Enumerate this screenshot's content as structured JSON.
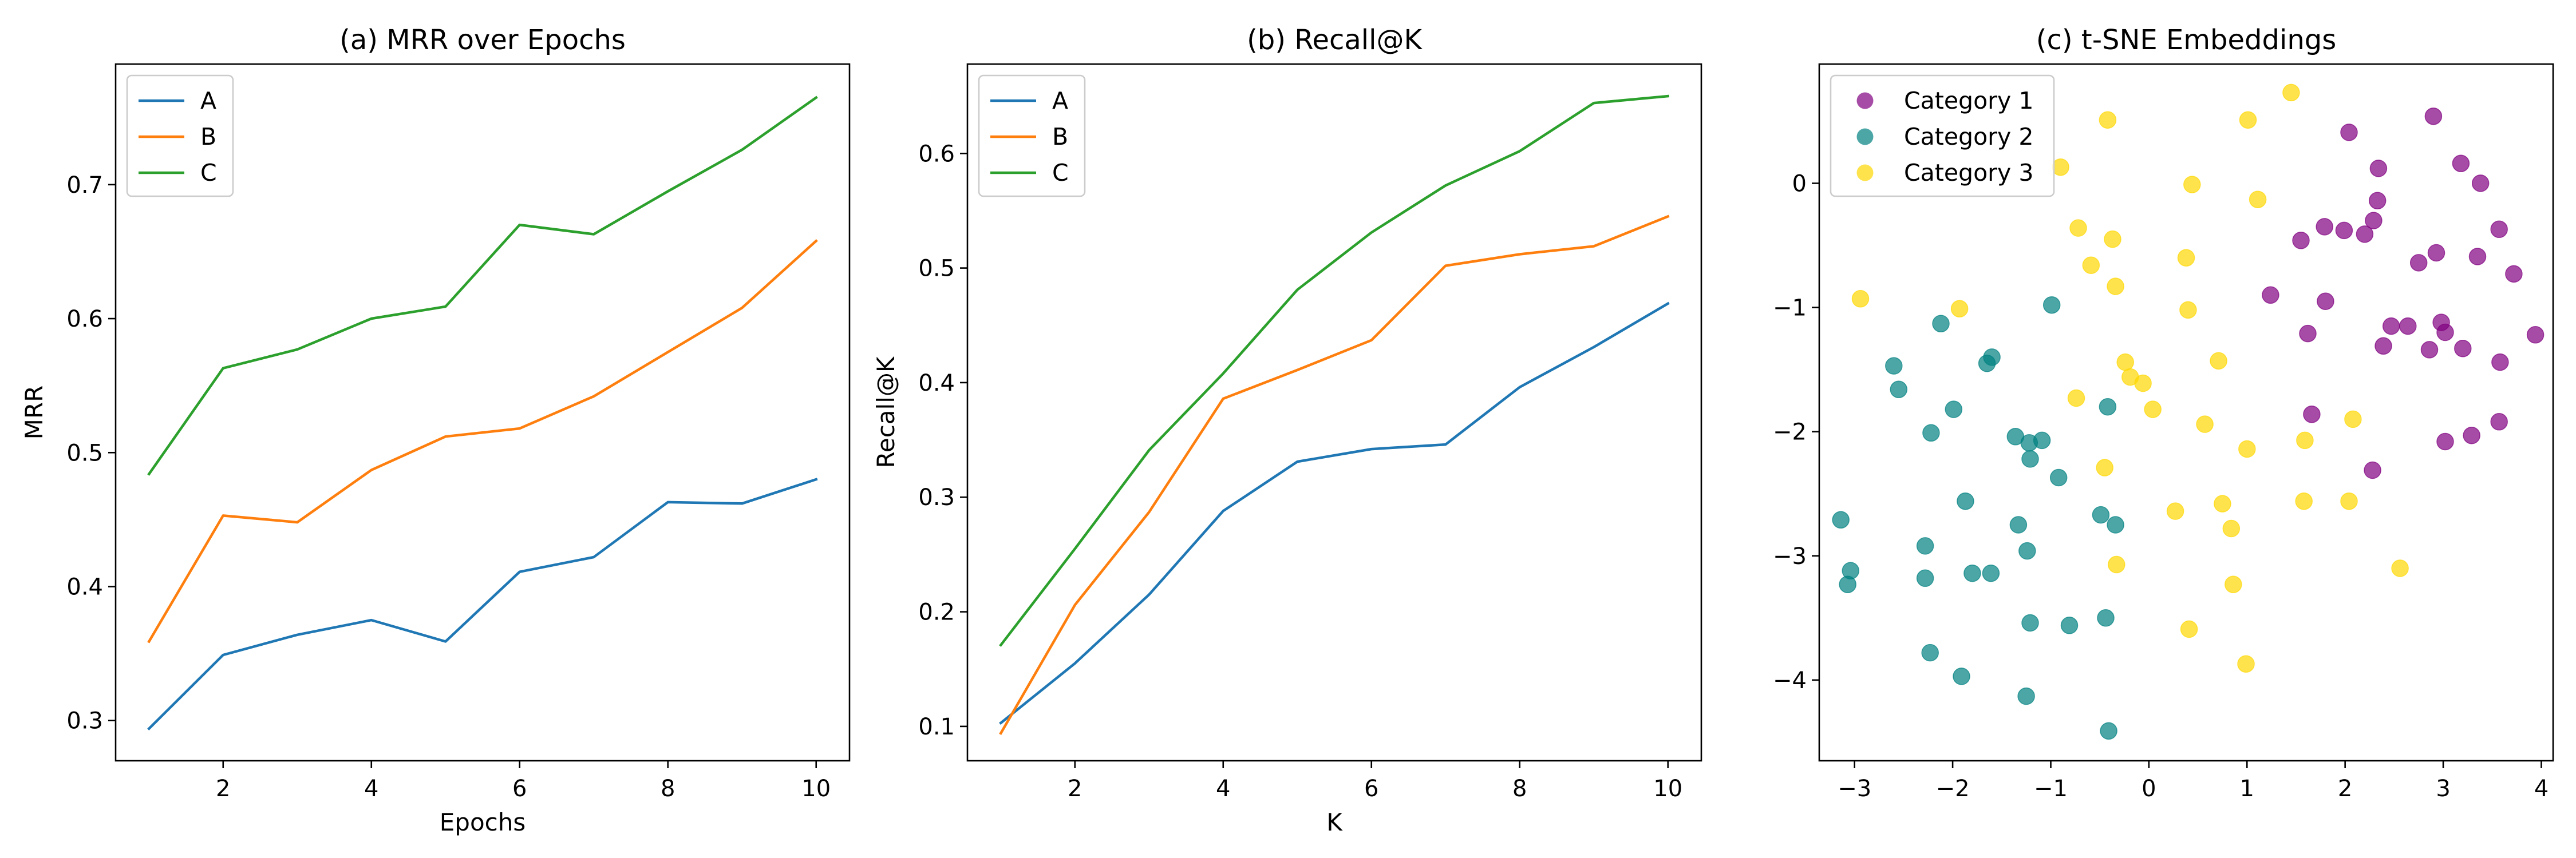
{
  "chart_data": [
    {
      "type": "line",
      "title": "(a) MRR over Epochs",
      "xlabel": "Epochs",
      "ylabel": "MRR",
      "xlim": [
        0.55,
        10.45
      ],
      "ylim": [
        0.27,
        0.79
      ],
      "xticks": [
        2,
        4,
        6,
        8,
        10
      ],
      "yticks": [
        0.3,
        0.4,
        0.5,
        0.6,
        0.7
      ],
      "legend": "top-left",
      "grid": false,
      "x": [
        1,
        2,
        3,
        4,
        5,
        6,
        7,
        8,
        9,
        10
      ],
      "series": [
        {
          "name": "A",
          "color": "#1f77b4",
          "values": [
            0.294,
            0.349,
            0.364,
            0.375,
            0.359,
            0.411,
            0.422,
            0.463,
            0.462,
            0.48
          ]
        },
        {
          "name": "B",
          "color": "#ff7f0e",
          "values": [
            0.359,
            0.453,
            0.448,
            0.487,
            0.512,
            0.518,
            0.542,
            0.575,
            0.608,
            0.658
          ]
        },
        {
          "name": "C",
          "color": "#2ca02c",
          "values": [
            0.484,
            0.563,
            0.577,
            0.6,
            0.609,
            0.67,
            0.663,
            0.695,
            0.726,
            0.765
          ]
        }
      ]
    },
    {
      "type": "line",
      "title": "(b) Recall@K",
      "xlabel": "K",
      "ylabel": "Recall@K",
      "xlim": [
        0.55,
        10.45
      ],
      "ylim": [
        0.07,
        0.678
      ],
      "xticks": [
        2,
        4,
        6,
        8,
        10
      ],
      "yticks": [
        0.1,
        0.2,
        0.3,
        0.4,
        0.5,
        0.6
      ],
      "legend": "top-left",
      "grid": false,
      "x": [
        1,
        2,
        3,
        4,
        5,
        6,
        7,
        8,
        9,
        10
      ],
      "series": [
        {
          "name": "A",
          "color": "#1f77b4",
          "values": [
            0.103,
            0.155,
            0.215,
            0.288,
            0.331,
            0.342,
            0.346,
            0.396,
            0.431,
            0.469
          ]
        },
        {
          "name": "B",
          "color": "#ff7f0e",
          "values": [
            0.094,
            0.206,
            0.287,
            0.386,
            0.411,
            0.437,
            0.502,
            0.512,
            0.519,
            0.545
          ]
        },
        {
          "name": "C",
          "color": "#2ca02c",
          "values": [
            0.171,
            0.255,
            0.341,
            0.408,
            0.481,
            0.531,
            0.572,
            0.602,
            0.644,
            0.65
          ]
        }
      ]
    },
    {
      "type": "scatter",
      "title": "(c) t-SNE Embeddings",
      "xlabel": "",
      "ylabel": "",
      "xlim": [
        -3.36,
        4.12
      ],
      "ylim": [
        -4.65,
        0.96
      ],
      "xticks": [
        -3,
        -2,
        -1,
        0,
        1,
        2,
        3,
        4
      ],
      "yticks": [
        -4,
        -3,
        -2,
        -1,
        0
      ],
      "legend": "top-left",
      "grid": false,
      "series": [
        {
          "name": "Category 1",
          "color": "#800080",
          "points": [
            [
              2.9,
              0.54
            ],
            [
              2.04,
              0.41
            ],
            [
              3.18,
              0.16
            ],
            [
              2.34,
              0.12
            ],
            [
              3.38,
              0.0
            ],
            [
              2.33,
              -0.14
            ],
            [
              2.29,
              -0.3
            ],
            [
              1.79,
              -0.35
            ],
            [
              1.99,
              -0.38
            ],
            [
              3.57,
              -0.37
            ],
            [
              2.2,
              -0.41
            ],
            [
              1.55,
              -0.46
            ],
            [
              3.35,
              -0.59
            ],
            [
              2.93,
              -0.56
            ],
            [
              2.75,
              -0.64
            ],
            [
              3.72,
              -0.73
            ],
            [
              1.24,
              -0.9
            ],
            [
              1.8,
              -0.95
            ],
            [
              2.47,
              -1.15
            ],
            [
              2.64,
              -1.15
            ],
            [
              2.98,
              -1.12
            ],
            [
              3.02,
              -1.2
            ],
            [
              3.94,
              -1.22
            ],
            [
              1.62,
              -1.21
            ],
            [
              2.39,
              -1.31
            ],
            [
              2.86,
              -1.34
            ],
            [
              3.2,
              -1.33
            ],
            [
              3.58,
              -1.44
            ],
            [
              1.66,
              -1.86
            ],
            [
              3.57,
              -1.92
            ],
            [
              3.29,
              -2.03
            ],
            [
              3.02,
              -2.08
            ],
            [
              2.28,
              -2.31
            ]
          ]
        },
        {
          "name": "Category 2",
          "color": "#008080",
          "points": [
            [
              -0.99,
              -0.98
            ],
            [
              -2.12,
              -1.13
            ],
            [
              -1.6,
              -1.4
            ],
            [
              -2.6,
              -1.47
            ],
            [
              -1.65,
              -1.45
            ],
            [
              -2.55,
              -1.66
            ],
            [
              -0.42,
              -1.8
            ],
            [
              -1.99,
              -1.82
            ],
            [
              -2.22,
              -2.01
            ],
            [
              -1.36,
              -2.04
            ],
            [
              -1.22,
              -2.09
            ],
            [
              -1.09,
              -2.07
            ],
            [
              -1.21,
              -2.22
            ],
            [
              -0.92,
              -2.37
            ],
            [
              -1.87,
              -2.56
            ],
            [
              -0.49,
              -2.67
            ],
            [
              -3.14,
              -2.71
            ],
            [
              -0.34,
              -2.75
            ],
            [
              -1.33,
              -2.75
            ],
            [
              -2.28,
              -2.92
            ],
            [
              -1.24,
              -2.96
            ],
            [
              -3.04,
              -3.12
            ],
            [
              -1.61,
              -3.14
            ],
            [
              -1.8,
              -3.14
            ],
            [
              -2.28,
              -3.18
            ],
            [
              -3.07,
              -3.23
            ],
            [
              -0.44,
              -3.5
            ],
            [
              -1.21,
              -3.54
            ],
            [
              -0.81,
              -3.56
            ],
            [
              -2.23,
              -3.78
            ],
            [
              -1.91,
              -3.97
            ],
            [
              -1.25,
              -4.13
            ],
            [
              -0.41,
              -4.41
            ]
          ]
        },
        {
          "name": "Category 3",
          "color": "#ffd700",
          "points": [
            [
              1.45,
              0.73
            ],
            [
              -0.42,
              0.51
            ],
            [
              1.01,
              0.51
            ],
            [
              -0.9,
              0.13
            ],
            [
              1.11,
              -0.13
            ],
            [
              -0.72,
              -0.36
            ],
            [
              -0.37,
              -0.45
            ],
            [
              0.38,
              -0.6
            ],
            [
              -0.59,
              -0.66
            ],
            [
              -0.34,
              -0.83
            ],
            [
              -2.94,
              -0.93
            ],
            [
              -1.93,
              -1.01
            ],
            [
              0.4,
              -1.02
            ],
            [
              -0.24,
              -1.44
            ],
            [
              0.44,
              -0.01
            ],
            [
              -0.19,
              -1.56
            ],
            [
              -0.06,
              -1.61
            ],
            [
              0.71,
              -1.43
            ],
            [
              -0.74,
              -1.73
            ],
            [
              0.04,
              -1.82
            ],
            [
              0.57,
              -1.94
            ],
            [
              2.08,
              -1.9
            ],
            [
              1.59,
              -2.07
            ],
            [
              1.0,
              -2.14
            ],
            [
              -0.45,
              -2.29
            ],
            [
              1.58,
              -2.56
            ],
            [
              2.04,
              -2.56
            ],
            [
              0.75,
              -2.58
            ],
            [
              0.27,
              -2.64
            ],
            [
              0.84,
              -2.78
            ],
            [
              -0.33,
              -3.07
            ],
            [
              2.56,
              -3.1
            ],
            [
              0.86,
              -3.23
            ],
            [
              0.41,
              -3.59
            ],
            [
              0.99,
              -3.87
            ]
          ]
        }
      ]
    }
  ]
}
